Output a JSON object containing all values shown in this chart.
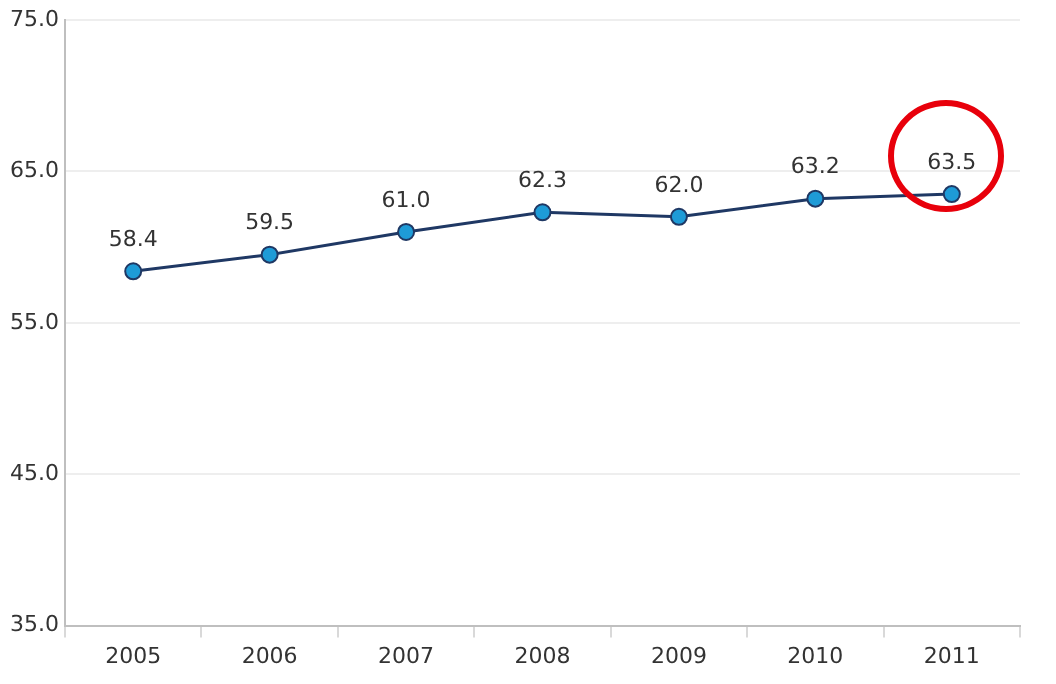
{
  "chart_data": {
    "type": "line",
    "categories": [
      "2005",
      "2006",
      "2007",
      "2008",
      "2009",
      "2010",
      "2011"
    ],
    "series": [
      {
        "color": "#1f3864",
        "values": [
          58.4,
          59.5,
          61.0,
          62.3,
          62.0,
          63.2,
          63.5
        ],
        "value_labels": [
          "58.4",
          "59.5",
          "61.0",
          "62.3",
          "62.0",
          "63.2",
          "63.5"
        ]
      }
    ],
    "ylim": [
      35,
      75
    ],
    "yticks": [
      {
        "value": 35,
        "label": "35.0"
      },
      {
        "value": 45,
        "label": "45.0"
      },
      {
        "value": 55,
        "label": "55.0"
      },
      {
        "value": 65,
        "label": "65.0"
      },
      {
        "value": 75,
        "label": "75.0"
      }
    ],
    "grid": "y",
    "marker": "circle",
    "line_style": "solid",
    "legend": false
  }
}
